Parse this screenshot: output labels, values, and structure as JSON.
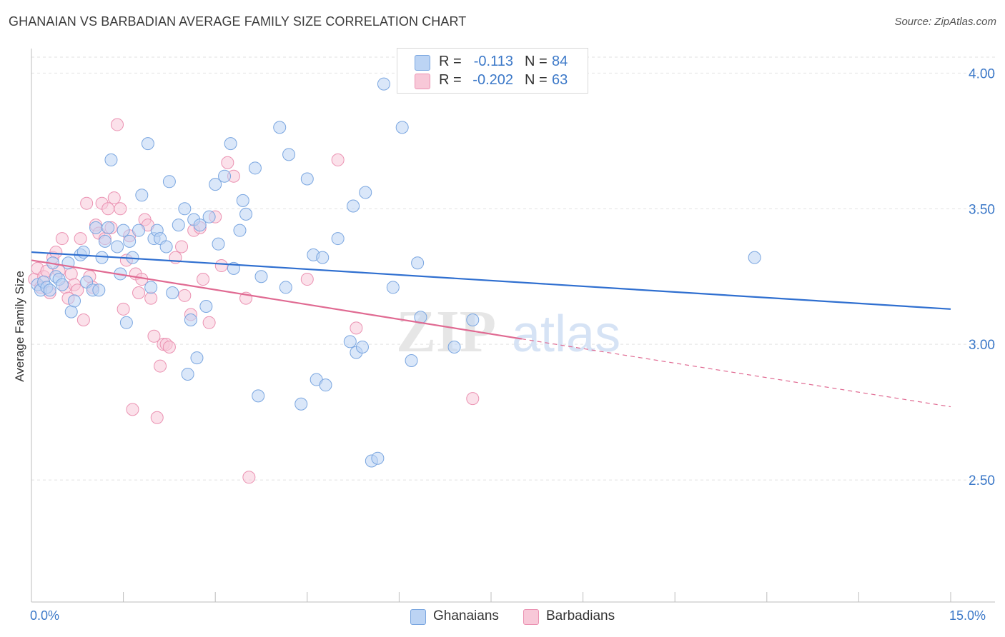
{
  "title": "GHANAIAN VS BARBADIAN AVERAGE FAMILY SIZE CORRELATION CHART",
  "source": "Source: ZipAtlas.com",
  "watermark": {
    "zip": "ZIP",
    "atlas": "atlas"
  },
  "legend_top": {
    "rows": [
      {
        "r_label": "R =",
        "r_value": "-0.113",
        "n_label": "N =",
        "n_value": "84"
      },
      {
        "r_label": "R =",
        "r_value": "-0.202",
        "n_label": "N =",
        "n_value": "63"
      }
    ]
  },
  "legend_bottom": {
    "ghanaians": "Ghanaians",
    "barbadians": "Barbadians"
  },
  "colors": {
    "blue_fill": "#bcd4f4",
    "blue_stroke": "#7aa6e0",
    "blue_line": "#2f6fd0",
    "pink_fill": "#f8c8d8",
    "pink_stroke": "#eb92b2",
    "pink_line": "#e06a92",
    "tick_label": "#3b78c8",
    "grid": "#e2e2e2"
  },
  "chart_data": {
    "type": "scatter",
    "title": "GHANAIAN VS BARBADIAN AVERAGE FAMILY SIZE CORRELATION CHART",
    "xlabel": "",
    "ylabel": "Average Family Size",
    "xlim": [
      0,
      15
    ],
    "ylim": [
      2.05,
      4.08
    ],
    "x_tick_labels": [
      "0.0%",
      "15.0%"
    ],
    "y_ticks": [
      2.5,
      3.0,
      3.5,
      4.0
    ],
    "y_tick_labels": [
      "2.50",
      "3.00",
      "3.50",
      "4.00"
    ],
    "grid": true,
    "legend_position": "bottom",
    "series": [
      {
        "name": "Ghanaians",
        "r": -0.113,
        "n": 84,
        "trend": {
          "x0": 0.0,
          "y0": 3.34,
          "x1": 15.0,
          "y1": 3.13
        },
        "points": [
          [
            0.1,
            3.22
          ],
          [
            0.15,
            3.2
          ],
          [
            0.2,
            3.23
          ],
          [
            0.25,
            3.21
          ],
          [
            0.3,
            3.2
          ],
          [
            0.35,
            3.3
          ],
          [
            0.4,
            3.25
          ],
          [
            0.45,
            3.24
          ],
          [
            0.5,
            3.22
          ],
          [
            0.6,
            3.3
          ],
          [
            0.65,
            3.12
          ],
          [
            0.7,
            3.16
          ],
          [
            0.8,
            3.33
          ],
          [
            0.85,
            3.34
          ],
          [
            0.9,
            3.23
          ],
          [
            1.0,
            3.2
          ],
          [
            1.05,
            3.43
          ],
          [
            1.1,
            3.2
          ],
          [
            1.15,
            3.32
          ],
          [
            1.2,
            3.38
          ],
          [
            1.25,
            3.43
          ],
          [
            1.3,
            3.68
          ],
          [
            1.4,
            3.36
          ],
          [
            1.45,
            3.26
          ],
          [
            1.5,
            3.42
          ],
          [
            1.55,
            3.08
          ],
          [
            1.6,
            3.38
          ],
          [
            1.65,
            3.32
          ],
          [
            1.75,
            3.42
          ],
          [
            1.8,
            3.55
          ],
          [
            1.9,
            3.74
          ],
          [
            1.95,
            3.21
          ],
          [
            2.0,
            3.39
          ],
          [
            2.05,
            3.42
          ],
          [
            2.1,
            3.39
          ],
          [
            2.2,
            3.36
          ],
          [
            2.25,
            3.6
          ],
          [
            2.3,
            3.19
          ],
          [
            2.4,
            3.44
          ],
          [
            2.5,
            3.5
          ],
          [
            2.55,
            2.89
          ],
          [
            2.6,
            3.09
          ],
          [
            2.65,
            3.46
          ],
          [
            2.7,
            2.95
          ],
          [
            2.75,
            3.44
          ],
          [
            2.85,
            3.14
          ],
          [
            2.9,
            3.47
          ],
          [
            3.0,
            3.59
          ],
          [
            3.05,
            3.37
          ],
          [
            3.15,
            3.62
          ],
          [
            3.25,
            3.74
          ],
          [
            3.3,
            3.28
          ],
          [
            3.4,
            3.42
          ],
          [
            3.45,
            3.53
          ],
          [
            3.5,
            3.48
          ],
          [
            3.65,
            3.65
          ],
          [
            3.7,
            2.81
          ],
          [
            3.75,
            3.25
          ],
          [
            4.05,
            3.8
          ],
          [
            4.15,
            3.21
          ],
          [
            4.2,
            3.7
          ],
          [
            4.4,
            2.78
          ],
          [
            4.5,
            3.61
          ],
          [
            4.6,
            3.33
          ],
          [
            4.65,
            2.87
          ],
          [
            4.75,
            3.32
          ],
          [
            4.8,
            2.85
          ],
          [
            5.0,
            3.39
          ],
          [
            5.2,
            3.01
          ],
          [
            5.25,
            3.51
          ],
          [
            5.3,
            2.97
          ],
          [
            5.4,
            2.99
          ],
          [
            5.45,
            3.56
          ],
          [
            5.55,
            2.57
          ],
          [
            5.65,
            2.58
          ],
          [
            5.75,
            3.96
          ],
          [
            5.9,
            3.21
          ],
          [
            6.05,
            3.8
          ],
          [
            6.2,
            2.94
          ],
          [
            6.3,
            3.3
          ],
          [
            6.35,
            3.1
          ],
          [
            6.9,
            2.99
          ],
          [
            7.2,
            3.09
          ],
          [
            11.8,
            3.32
          ]
        ]
      },
      {
        "name": "Barbadians",
        "r": -0.202,
        "n": 63,
        "trend": {
          "x0": 0.0,
          "y0": 3.31,
          "x1": 8.0,
          "y1": 3.02,
          "dash_x1": 15.0,
          "dash_y1": 2.77
        },
        "points": [
          [
            0.05,
            3.24
          ],
          [
            0.1,
            3.28
          ],
          [
            0.15,
            3.21
          ],
          [
            0.2,
            3.25
          ],
          [
            0.25,
            3.27
          ],
          [
            0.3,
            3.19
          ],
          [
            0.35,
            3.32
          ],
          [
            0.4,
            3.34
          ],
          [
            0.45,
            3.27
          ],
          [
            0.5,
            3.39
          ],
          [
            0.55,
            3.21
          ],
          [
            0.6,
            3.17
          ],
          [
            0.65,
            3.26
          ],
          [
            0.7,
            3.22
          ],
          [
            0.75,
            3.2
          ],
          [
            0.8,
            3.39
          ],
          [
            0.85,
            3.09
          ],
          [
            0.9,
            3.52
          ],
          [
            0.95,
            3.25
          ],
          [
            1.0,
            3.21
          ],
          [
            1.05,
            3.44
          ],
          [
            1.1,
            3.41
          ],
          [
            1.15,
            3.52
          ],
          [
            1.2,
            3.39
          ],
          [
            1.25,
            3.5
          ],
          [
            1.3,
            3.43
          ],
          [
            1.35,
            3.54
          ],
          [
            1.4,
            3.81
          ],
          [
            1.45,
            3.5
          ],
          [
            1.5,
            3.13
          ],
          [
            1.55,
            3.31
          ],
          [
            1.6,
            3.4
          ],
          [
            1.65,
            2.76
          ],
          [
            1.7,
            3.26
          ],
          [
            1.75,
            3.19
          ],
          [
            1.8,
            3.24
          ],
          [
            1.85,
            3.46
          ],
          [
            1.9,
            3.44
          ],
          [
            1.95,
            3.17
          ],
          [
            2.0,
            3.03
          ],
          [
            2.05,
            2.73
          ],
          [
            2.1,
            2.92
          ],
          [
            2.15,
            3.0
          ],
          [
            2.2,
            3.0
          ],
          [
            2.25,
            2.99
          ],
          [
            2.35,
            3.32
          ],
          [
            2.45,
            3.36
          ],
          [
            2.5,
            3.18
          ],
          [
            2.6,
            3.11
          ],
          [
            2.65,
            3.42
          ],
          [
            2.75,
            3.43
          ],
          [
            2.8,
            3.24
          ],
          [
            2.9,
            3.08
          ],
          [
            3.0,
            3.47
          ],
          [
            3.1,
            3.29
          ],
          [
            3.2,
            3.67
          ],
          [
            3.3,
            3.62
          ],
          [
            3.5,
            3.17
          ],
          [
            3.55,
            2.51
          ],
          [
            4.5,
            3.24
          ],
          [
            5.0,
            3.68
          ],
          [
            5.3,
            3.06
          ],
          [
            7.2,
            2.8
          ]
        ]
      }
    ]
  }
}
